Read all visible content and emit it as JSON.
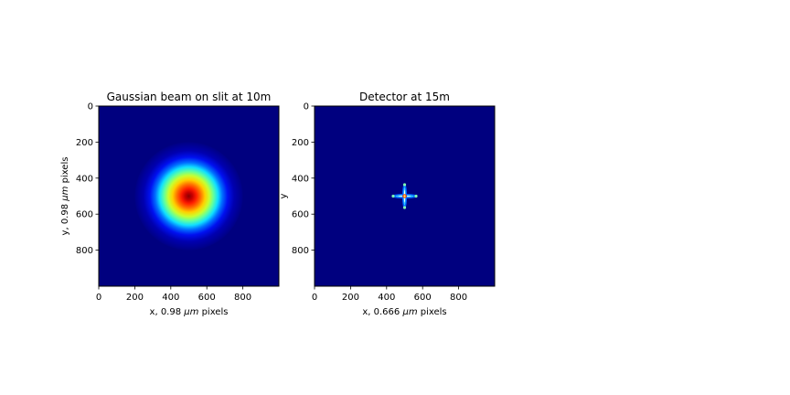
{
  "chart_data": [
    {
      "type": "heatmap",
      "title": "Gaussian beam on slit at 10m",
      "xlabel_prefix": "x, 0.98 ",
      "xlabel_unit": "μm",
      "xlabel_suffix": " pixels",
      "ylabel_prefix": "y, 0.98 ",
      "ylabel_unit": "μm",
      "ylabel_suffix": " pixels",
      "xlim": [
        0,
        1000
      ],
      "ylim": [
        1000,
        0
      ],
      "xticks": [
        0,
        200,
        400,
        600,
        800
      ],
      "yticks": [
        0,
        200,
        400,
        600,
        800
      ],
      "colormap": "jet",
      "pattern": "gaussian",
      "center": [
        500,
        500
      ],
      "sigma": 100
    },
    {
      "type": "heatmap",
      "title": "Detector at 15m",
      "xlabel_prefix": "x, 0.666 ",
      "xlabel_unit": "μm",
      "xlabel_suffix": " pixels",
      "ylabel": "y",
      "xlim": [
        0,
        1000
      ],
      "ylim": [
        1000,
        0
      ],
      "xticks": [
        0,
        200,
        400,
        600,
        800
      ],
      "yticks": [
        0,
        200,
        400,
        600,
        800
      ],
      "colormap": "jet",
      "pattern": "cross",
      "center": [
        500,
        500
      ],
      "arm_length": 60
    }
  ],
  "colors": {
    "background": "#ffffff",
    "jet_low": "#00007f",
    "jet_high": "#7f0000"
  }
}
